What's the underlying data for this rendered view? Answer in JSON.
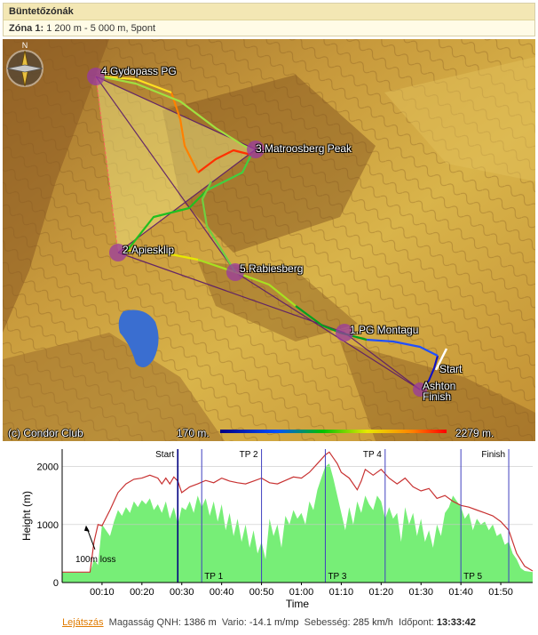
{
  "zones": {
    "title": "Büntetőzónák",
    "zone_label": "Zóna 1:",
    "zone_value": "1 200 m - 5 000 m, 5pont"
  },
  "map": {
    "turnpoints": [
      {
        "name": "4.Gydopass PG"
      },
      {
        "name": "3.Matroosberg Peak"
      },
      {
        "name": "2.Apiesklip"
      },
      {
        "name": "5.Rabiesberg"
      },
      {
        "name": "1.PG Montagu"
      },
      {
        "name": "Start"
      },
      {
        "name": "Ashton"
      },
      {
        "name": "Finish"
      }
    ],
    "copyright": "(c) Condor Club",
    "scale_min": "170 m.",
    "scale_max": "2279 m.",
    "compass_letter": "N"
  },
  "chart_data": {
    "type": "area",
    "xlabel": "Time",
    "ylabel": "Height (m)",
    "ylim": [
      0,
      2300
    ],
    "xlim": [
      0,
      118
    ],
    "x_ticks": [
      {
        "t": 10,
        "label": "00:10"
      },
      {
        "t": 20,
        "label": "00:20"
      },
      {
        "t": 30,
        "label": "00:30"
      },
      {
        "t": 40,
        "label": "00:40"
      },
      {
        "t": 50,
        "label": "00:50"
      },
      {
        "t": 60,
        "label": "01:00"
      },
      {
        "t": 70,
        "label": "01:10"
      },
      {
        "t": 80,
        "label": "01:20"
      },
      {
        "t": 90,
        "label": "01:30"
      },
      {
        "t": 100,
        "label": "01:40"
      },
      {
        "t": 110,
        "label": "01:50"
      }
    ],
    "y_ticks": [
      0,
      1000,
      2000
    ],
    "markers": [
      {
        "t": 29,
        "label": "Start",
        "pos": "top",
        "color": "#000080"
      },
      {
        "t": 35,
        "label": "TP 1",
        "pos": "bottom",
        "color": "#4040c0"
      },
      {
        "t": 50,
        "label": "TP 2",
        "pos": "top",
        "color": "#4040c0"
      },
      {
        "t": 66,
        "label": "TP 3",
        "pos": "bottom",
        "color": "#4040c0"
      },
      {
        "t": 81,
        "label": "TP 4",
        "pos": "top",
        "color": "#4040c0"
      },
      {
        "t": 100,
        "label": "TP 5",
        "pos": "bottom",
        "color": "#4040c0"
      },
      {
        "t": 112,
        "label": "Finish",
        "pos": "top",
        "color": "#4040c0"
      }
    ],
    "annotation": {
      "text": "100m loss",
      "t": 6,
      "height": 1000
    },
    "series": [
      {
        "kind": "altitude",
        "color": "#c83232",
        "points": [
          [
            0,
            180
          ],
          [
            7,
            180
          ],
          [
            8,
            700
          ],
          [
            9,
            1000
          ],
          [
            10,
            980
          ],
          [
            12,
            1250
          ],
          [
            14,
            1550
          ],
          [
            16,
            1700
          ],
          [
            18,
            1780
          ],
          [
            20,
            1800
          ],
          [
            22,
            1850
          ],
          [
            24,
            1800
          ],
          [
            25,
            1700
          ],
          [
            26,
            1800
          ],
          [
            27,
            1700
          ],
          [
            28,
            1820
          ],
          [
            29,
            1750
          ],
          [
            30,
            1550
          ],
          [
            32,
            1650
          ],
          [
            34,
            1700
          ],
          [
            36,
            1760
          ],
          [
            38,
            1720
          ],
          [
            40,
            1800
          ],
          [
            42,
            1750
          ],
          [
            44,
            1720
          ],
          [
            46,
            1700
          ],
          [
            48,
            1750
          ],
          [
            50,
            1800
          ],
          [
            52,
            1720
          ],
          [
            54,
            1700
          ],
          [
            56,
            1760
          ],
          [
            58,
            1820
          ],
          [
            60,
            1800
          ],
          [
            62,
            1900
          ],
          [
            64,
            2050
          ],
          [
            66,
            2200
          ],
          [
            67,
            2250
          ],
          [
            68,
            2150
          ],
          [
            69,
            2050
          ],
          [
            70,
            1900
          ],
          [
            72,
            1800
          ],
          [
            74,
            1600
          ],
          [
            75,
            1750
          ],
          [
            76,
            1950
          ],
          [
            78,
            1850
          ],
          [
            80,
            1950
          ],
          [
            82,
            1800
          ],
          [
            84,
            1700
          ],
          [
            86,
            1800
          ],
          [
            88,
            1650
          ],
          [
            90,
            1580
          ],
          [
            92,
            1620
          ],
          [
            94,
            1450
          ],
          [
            96,
            1500
          ],
          [
            98,
            1400
          ],
          [
            100,
            1330
          ],
          [
            102,
            1300
          ],
          [
            104,
            1250
          ],
          [
            106,
            1200
          ],
          [
            108,
            1150
          ],
          [
            110,
            1050
          ],
          [
            112,
            900
          ],
          [
            114,
            500
          ],
          [
            116,
            280
          ],
          [
            118,
            200
          ]
        ]
      },
      {
        "kind": "terrain",
        "color": "#77ee77",
        "points": [
          [
            0,
            170
          ],
          [
            7,
            170
          ],
          [
            8,
            400
          ],
          [
            9,
            300
          ],
          [
            10,
            1000
          ],
          [
            11,
            900
          ],
          [
            12,
            800
          ],
          [
            13,
            1050
          ],
          [
            14,
            1250
          ],
          [
            15,
            1150
          ],
          [
            16,
            1300
          ],
          [
            17,
            1200
          ],
          [
            18,
            1400
          ],
          [
            19,
            1300
          ],
          [
            20,
            1420
          ],
          [
            21,
            1350
          ],
          [
            22,
            1450
          ],
          [
            23,
            1250
          ],
          [
            24,
            1350
          ],
          [
            25,
            1200
          ],
          [
            26,
            1400
          ],
          [
            27,
            1100
          ],
          [
            28,
            1300
          ],
          [
            29,
            1000
          ],
          [
            30,
            1300
          ],
          [
            31,
            1250
          ],
          [
            32,
            1400
          ],
          [
            33,
            1200
          ],
          [
            34,
            1500
          ],
          [
            35,
            1300
          ],
          [
            36,
            1450
          ],
          [
            37,
            1150
          ],
          [
            38,
            1400
          ],
          [
            39,
            1050
          ],
          [
            40,
            1350
          ],
          [
            41,
            900
          ],
          [
            42,
            1200
          ],
          [
            43,
            800
          ],
          [
            44,
            1100
          ],
          [
            45,
            700
          ],
          [
            46,
            1000
          ],
          [
            47,
            600
          ],
          [
            48,
            900
          ],
          [
            49,
            500
          ],
          [
            50,
            700
          ],
          [
            51,
            400
          ],
          [
            52,
            1100
          ],
          [
            53,
            800
          ],
          [
            54,
            1000
          ],
          [
            55,
            600
          ],
          [
            56,
            1150
          ],
          [
            57,
            1000
          ],
          [
            58,
            1250
          ],
          [
            59,
            1100
          ],
          [
            60,
            1200
          ],
          [
            61,
            1000
          ],
          [
            62,
            1400
          ],
          [
            63,
            1250
          ],
          [
            64,
            1600
          ],
          [
            65,
            1800
          ],
          [
            66,
            2000
          ],
          [
            67,
            2050
          ],
          [
            68,
            1800
          ],
          [
            69,
            1500
          ],
          [
            70,
            1200
          ],
          [
            71,
            900
          ],
          [
            72,
            1300
          ],
          [
            73,
            1000
          ],
          [
            74,
            1400
          ],
          [
            75,
            1200
          ],
          [
            76,
            1500
          ],
          [
            77,
            1350
          ],
          [
            78,
            1250
          ],
          [
            79,
            1500
          ],
          [
            80,
            1400
          ],
          [
            81,
            1100
          ],
          [
            82,
            1300
          ],
          [
            83,
            1100
          ],
          [
            84,
            1200
          ],
          [
            85,
            700
          ],
          [
            86,
            1300
          ],
          [
            87,
            1000
          ],
          [
            88,
            1200
          ],
          [
            89,
            800
          ],
          [
            90,
            1100
          ],
          [
            91,
            700
          ],
          [
            92,
            900
          ],
          [
            93,
            600
          ],
          [
            94,
            1000
          ],
          [
            95,
            800
          ],
          [
            96,
            1200
          ],
          [
            97,
            1300
          ],
          [
            98,
            1500
          ],
          [
            99,
            1400
          ],
          [
            100,
            1300
          ],
          [
            101,
            1100
          ],
          [
            102,
            1200
          ],
          [
            103,
            900
          ],
          [
            104,
            1100
          ],
          [
            105,
            1000
          ],
          [
            106,
            1050
          ],
          [
            107,
            900
          ],
          [
            108,
            1000
          ],
          [
            109,
            800
          ],
          [
            110,
            850
          ],
          [
            111,
            650
          ],
          [
            112,
            700
          ],
          [
            113,
            500
          ],
          [
            114,
            400
          ],
          [
            115,
            250
          ],
          [
            116,
            200
          ],
          [
            118,
            180
          ]
        ]
      }
    ]
  },
  "footer": {
    "replay_link": "Lejátszás",
    "qnh_label": "Magasság QNH:",
    "qnh_value": "1386 m",
    "vario_label": "Vario:",
    "vario_value": "-14.1 m/mp",
    "speed_label": "Sebesség:",
    "speed_value": "285 km/h",
    "time_label": "Időpont:",
    "time_value": "13:33:42"
  }
}
